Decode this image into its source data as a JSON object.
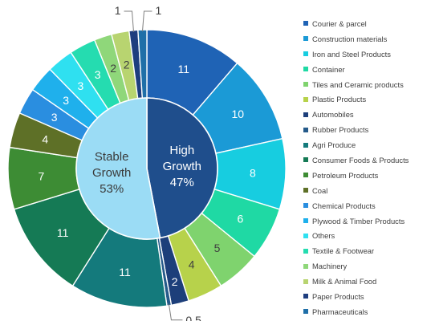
{
  "chart_data": {
    "type": "donut",
    "title": "",
    "inner_ring": {
      "categories": [
        "High Growth",
        "Stable Growth"
      ],
      "label_lines": [
        [
          "High",
          "Growth",
          "47%"
        ],
        [
          "Stable",
          "Growth",
          "53%"
        ]
      ],
      "values": [
        47,
        53
      ],
      "colors": [
        "#1f4e8c",
        "#9bdcf5"
      ]
    },
    "outer_ring": {
      "categories": [
        "Courier & parcel",
        "Construction materials",
        "Iron and Steel Products",
        "Container",
        "Tiles and Ceramic products",
        "Plastic Products",
        "Automobiles",
        "Rubber Products",
        "Agri Produce",
        "Consumer Foods & Products",
        "Petroleum Products",
        "Coal",
        "Chemical Products",
        "Plywood & Timber Products",
        "Others",
        "Textile & Footwear",
        "Machinery",
        "Milk & Animal Food",
        "Paper Products",
        "Pharmaceuticals"
      ],
      "values": [
        11,
        10,
        8,
        6,
        5,
        4,
        2,
        0.5,
        11,
        11,
        7,
        4,
        3,
        3,
        3,
        3,
        2,
        2,
        1,
        1
      ],
      "data_labels": [
        "11",
        "10",
        "8",
        "6",
        "5",
        "4",
        "2",
        "0.5",
        "11",
        "11",
        "7",
        "4",
        "3",
        "3",
        "3",
        "3",
        "2",
        "2",
        "1",
        "1"
      ],
      "groups": [
        "High Growth",
        "High Growth",
        "High Growth",
        "High Growth",
        "High Growth",
        "High Growth",
        "High Growth",
        "High Growth",
        "Stable Growth",
        "Stable Growth",
        "Stable Growth",
        "Stable Growth",
        "Stable Growth",
        "Stable Growth",
        "Stable Growth",
        "Stable Growth",
        "Stable Growth",
        "Stable Growth",
        "Stable Growth",
        "Stable Growth"
      ],
      "colors": [
        "#1f63b5",
        "#1b9ad6",
        "#17cde0",
        "#1fd9a4",
        "#7fd36e",
        "#b7d24b",
        "#1d3f7a",
        "#255a8a",
        "#147a7c",
        "#157a55",
        "#3d8c34",
        "#5e7027",
        "#2a8ee0",
        "#1fb0ec",
        "#2fe0f0",
        "#25dcb0",
        "#8fd77a",
        "#b8d470",
        "#1e3e7f",
        "#1f6fa8"
      ]
    },
    "legend": {
      "position": "right",
      "entries": [
        "Courier & parcel",
        "Construction materials",
        "Iron and Steel Products",
        "Container",
        "Tiles and Ceramic products",
        "Plastic Products",
        "Automobiles",
        "Rubber Products",
        "Agri Produce",
        "Consumer Foods & Products",
        "Petroleum Products",
        "Coal",
        "Chemical Products",
        "Plywood & Timber Products",
        "Others",
        "Textile & Footwear",
        "Machinery",
        "Milk & Animal Food",
        "Paper Products",
        "Pharmaceuticals"
      ],
      "colors": [
        "#1f63b5",
        "#1b9ad6",
        "#17cde0",
        "#1fd9a4",
        "#7fd36e",
        "#b7d24b",
        "#1d3f7a",
        "#255a8a",
        "#147a7c",
        "#157a55",
        "#3d8c34",
        "#5e7027",
        "#2a8ee0",
        "#1fb0ec",
        "#2fe0f0",
        "#25dcb0",
        "#8fd77a",
        "#b8d470",
        "#1e3e7f",
        "#1f6fa8"
      ]
    }
  }
}
